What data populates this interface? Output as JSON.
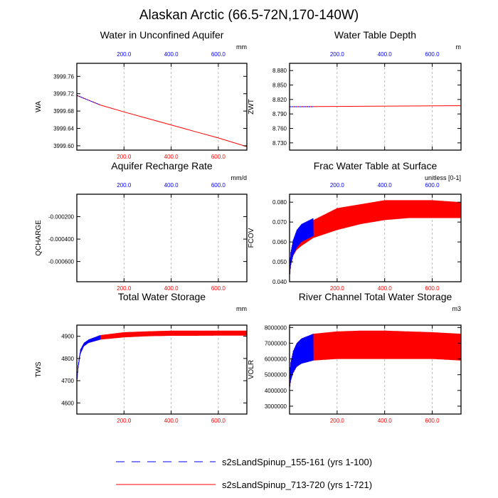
{
  "figure_title": "Alaskan Arctic (66.5-72N,170-140W)",
  "colors": {
    "blue": "#0000ff",
    "red": "#ff0000",
    "axis": "#000000",
    "grid": "#aaaaaa"
  },
  "legend": [
    {
      "label": "s2sLandSpinup_155-161 (yrs 1-100)",
      "color": "#0000ff",
      "style": "dashed"
    },
    {
      "label": "s2sLandSpinup_713-720 (yrs 1-721)",
      "color": "#ff0000",
      "style": "solid"
    }
  ],
  "chart_data": [
    {
      "type": "line",
      "title": "Water in Unconfined Aquifer",
      "ylabel": "WA",
      "units": "mm",
      "xlim": [
        0,
        721
      ],
      "ylim": [
        3999.59,
        3999.79
      ],
      "yticks": [
        3999.6,
        3999.64,
        3999.68,
        3999.72,
        3999.76
      ],
      "ytick_labels": [
        "3999.60",
        "3999.64",
        "3999.68",
        "3999.72",
        "3999.76"
      ],
      "xticks": [
        200,
        400,
        600
      ],
      "xtick_labels": [
        "200.0",
        "400.0",
        "600.0"
      ],
      "show_bottom_ticks": true,
      "show_top_ticks": true,
      "series": [
        {
          "name": "s2sLandSpinup_713-720 (yrs 1-721)",
          "color": "#ff0000",
          "kind": "trend",
          "x": [
            0,
            100,
            200,
            300,
            400,
            500,
            600,
            721
          ],
          "y": [
            3999.716,
            3999.694,
            3999.678,
            3999.663,
            3999.648,
            3999.633,
            3999.618,
            3999.598
          ]
        },
        {
          "name": "s2sLandSpinup_155-161 (yrs 1-100)",
          "color": "#0000ff",
          "kind": "trend",
          "x": [
            0,
            50,
            100
          ],
          "y": [
            3999.716,
            3999.705,
            3999.694
          ]
        }
      ]
    },
    {
      "type": "line",
      "title": "Water Table Depth",
      "ylabel": "ZWT",
      "units": "m",
      "xlim": [
        0,
        721
      ],
      "ylim": [
        8.715,
        8.895
      ],
      "yticks": [
        8.73,
        8.76,
        8.79,
        8.82,
        8.85,
        8.88
      ],
      "ytick_labels": [
        "8.730",
        "8.760",
        "8.790",
        "8.820",
        "8.850",
        "8.880"
      ],
      "xticks": [
        200,
        400,
        600
      ],
      "xtick_labels": [
        "200.0",
        "400.0",
        "600.0"
      ],
      "show_bottom_ticks": false,
      "show_top_ticks": true,
      "series": [
        {
          "name": "s2sLandSpinup_713-720 (yrs 1-721)",
          "color": "#ff0000",
          "kind": "trend",
          "x": [
            0,
            721
          ],
          "y": [
            8.805,
            8.807
          ]
        },
        {
          "name": "s2sLandSpinup_155-161 (yrs 1-100)",
          "color": "#0000ff",
          "kind": "trend",
          "x": [
            0,
            100
          ],
          "y": [
            8.805,
            8.805
          ]
        }
      ]
    },
    {
      "type": "line",
      "title": "Aquifer Recharge Rate",
      "ylabel": "QCHARGE",
      "units": "mm/d",
      "xlim": [
        0,
        721
      ],
      "ylim": [
        -0.00078,
        0.0
      ],
      "yticks": [
        -0.0002,
        -0.0004,
        -0.0006
      ],
      "ytick_labels": [
        "-0.000200",
        "-0.000400",
        "-0.000600"
      ],
      "xticks": [
        200,
        400,
        600
      ],
      "xtick_labels": [
        "200.0",
        "400.0",
        "600.0"
      ],
      "show_bottom_ticks": true,
      "show_top_ticks": true,
      "series": []
    },
    {
      "type": "line",
      "title": "Frac Water Table at Surface",
      "ylabel": "FCOV",
      "units": "unitless [0-1]",
      "xlim": [
        0,
        721
      ],
      "ylim": [
        0.04,
        0.084
      ],
      "yticks": [
        0.04,
        0.05,
        0.06,
        0.07,
        0.08
      ],
      "ytick_labels": [
        "0.040",
        "0.050",
        "0.060",
        "0.070",
        "0.080"
      ],
      "xticks": [
        200,
        400,
        600
      ],
      "xtick_labels": [
        "200.0",
        "400.0",
        "600.0"
      ],
      "show_bottom_ticks": true,
      "show_top_ticks": true,
      "series": [
        {
          "name": "s2sLandSpinup_713-720 (yrs 1-721)",
          "color": "#ff0000",
          "kind": "seasonal",
          "x": [
            0,
            5,
            15,
            30,
            50,
            100,
            200,
            300,
            400,
            500,
            600,
            721
          ],
          "y_low": [
            0.041,
            0.048,
            0.053,
            0.056,
            0.058,
            0.062,
            0.066,
            0.069,
            0.071,
            0.072,
            0.072,
            0.072
          ],
          "y_high": [
            0.048,
            0.055,
            0.061,
            0.065,
            0.068,
            0.071,
            0.077,
            0.079,
            0.081,
            0.081,
            0.081,
            0.08
          ]
        },
        {
          "name": "s2sLandSpinup_155-161 (yrs 1-100)",
          "color": "#0000ff",
          "kind": "seasonal",
          "x": [
            0,
            5,
            15,
            30,
            50,
            100
          ],
          "y_low": [
            0.041,
            0.048,
            0.053,
            0.057,
            0.06,
            0.063
          ],
          "y_high": [
            0.048,
            0.055,
            0.061,
            0.066,
            0.069,
            0.072
          ]
        }
      ]
    },
    {
      "type": "line",
      "title": "Total Water Storage",
      "ylabel": "TWS",
      "units": "mm",
      "xlim": [
        0,
        721
      ],
      "ylim": [
        4550,
        4950
      ],
      "yticks": [
        4600,
        4700,
        4800,
        4900
      ],
      "ytick_labels": [
        "4600",
        "4700",
        "4800",
        "4900"
      ],
      "xticks": [
        200,
        400,
        600
      ],
      "xtick_labels": [
        "200.0",
        "400.0",
        "600.0"
      ],
      "show_bottom_ticks": true,
      "show_top_ticks": false,
      "series": [
        {
          "name": "s2sLandSpinup_713-720 (yrs 1-721)",
          "color": "#ff0000",
          "kind": "seasonal",
          "x": [
            0,
            5,
            15,
            30,
            50,
            100,
            200,
            300,
            400,
            500,
            600,
            721
          ],
          "y_low": [
            4680,
            4750,
            4820,
            4855,
            4870,
            4885,
            4895,
            4900,
            4902,
            4902,
            4903,
            4903
          ],
          "y_high": [
            4700,
            4770,
            4840,
            4870,
            4885,
            4905,
            4918,
            4922,
            4925,
            4925,
            4925,
            4925
          ]
        },
        {
          "name": "s2sLandSpinup_155-161 (yrs 1-100)",
          "color": "#0000ff",
          "kind": "seasonal",
          "x": [
            0,
            5,
            15,
            30,
            50,
            100
          ],
          "y_low": [
            4680,
            4750,
            4820,
            4855,
            4870,
            4885
          ],
          "y_high": [
            4700,
            4770,
            4840,
            4870,
            4885,
            4905
          ]
        }
      ]
    },
    {
      "type": "line",
      "title": "River Channel Total Water Storage",
      "ylabel": "VOLR",
      "units": "m3",
      "xlim": [
        0,
        721
      ],
      "ylim": [
        2500000,
        8150000
      ],
      "yticks": [
        3000000,
        4000000,
        5000000,
        6000000,
        7000000,
        8000000
      ],
      "ytick_labels": [
        "3000000",
        "4000000",
        "5000000",
        "6000000",
        "7000000",
        "8000000"
      ],
      "xticks": [
        200,
        400,
        600
      ],
      "xtick_labels": [
        "200.0",
        "400.0",
        "600.0"
      ],
      "show_bottom_ticks": true,
      "show_top_ticks": false,
      "series": [
        {
          "name": "s2sLandSpinup_713-720 (yrs 1-721)",
          "color": "#ff0000",
          "kind": "seasonal",
          "x": [
            0,
            5,
            15,
            30,
            50,
            100,
            200,
            300,
            400,
            500,
            600,
            721
          ],
          "y_low": [
            4000000,
            4600000,
            5100000,
            5500000,
            5700000,
            5900000,
            6000000,
            6000000,
            6000000,
            6000000,
            6000000,
            5900000
          ],
          "y_high": [
            5000000,
            5800000,
            6500000,
            7000000,
            7300000,
            7600000,
            7750000,
            7800000,
            7800000,
            7750000,
            7700000,
            7600000
          ]
        },
        {
          "name": "s2sLandSpinup_155-161 (yrs 1-100)",
          "color": "#0000ff",
          "kind": "seasonal",
          "x": [
            0,
            5,
            15,
            30,
            50,
            100
          ],
          "y_low": [
            4000000,
            4600000,
            5100000,
            5500000,
            5700000,
            5900000
          ],
          "y_high": [
            5000000,
            5800000,
            6500000,
            7000000,
            7300000,
            7600000
          ]
        }
      ]
    }
  ]
}
